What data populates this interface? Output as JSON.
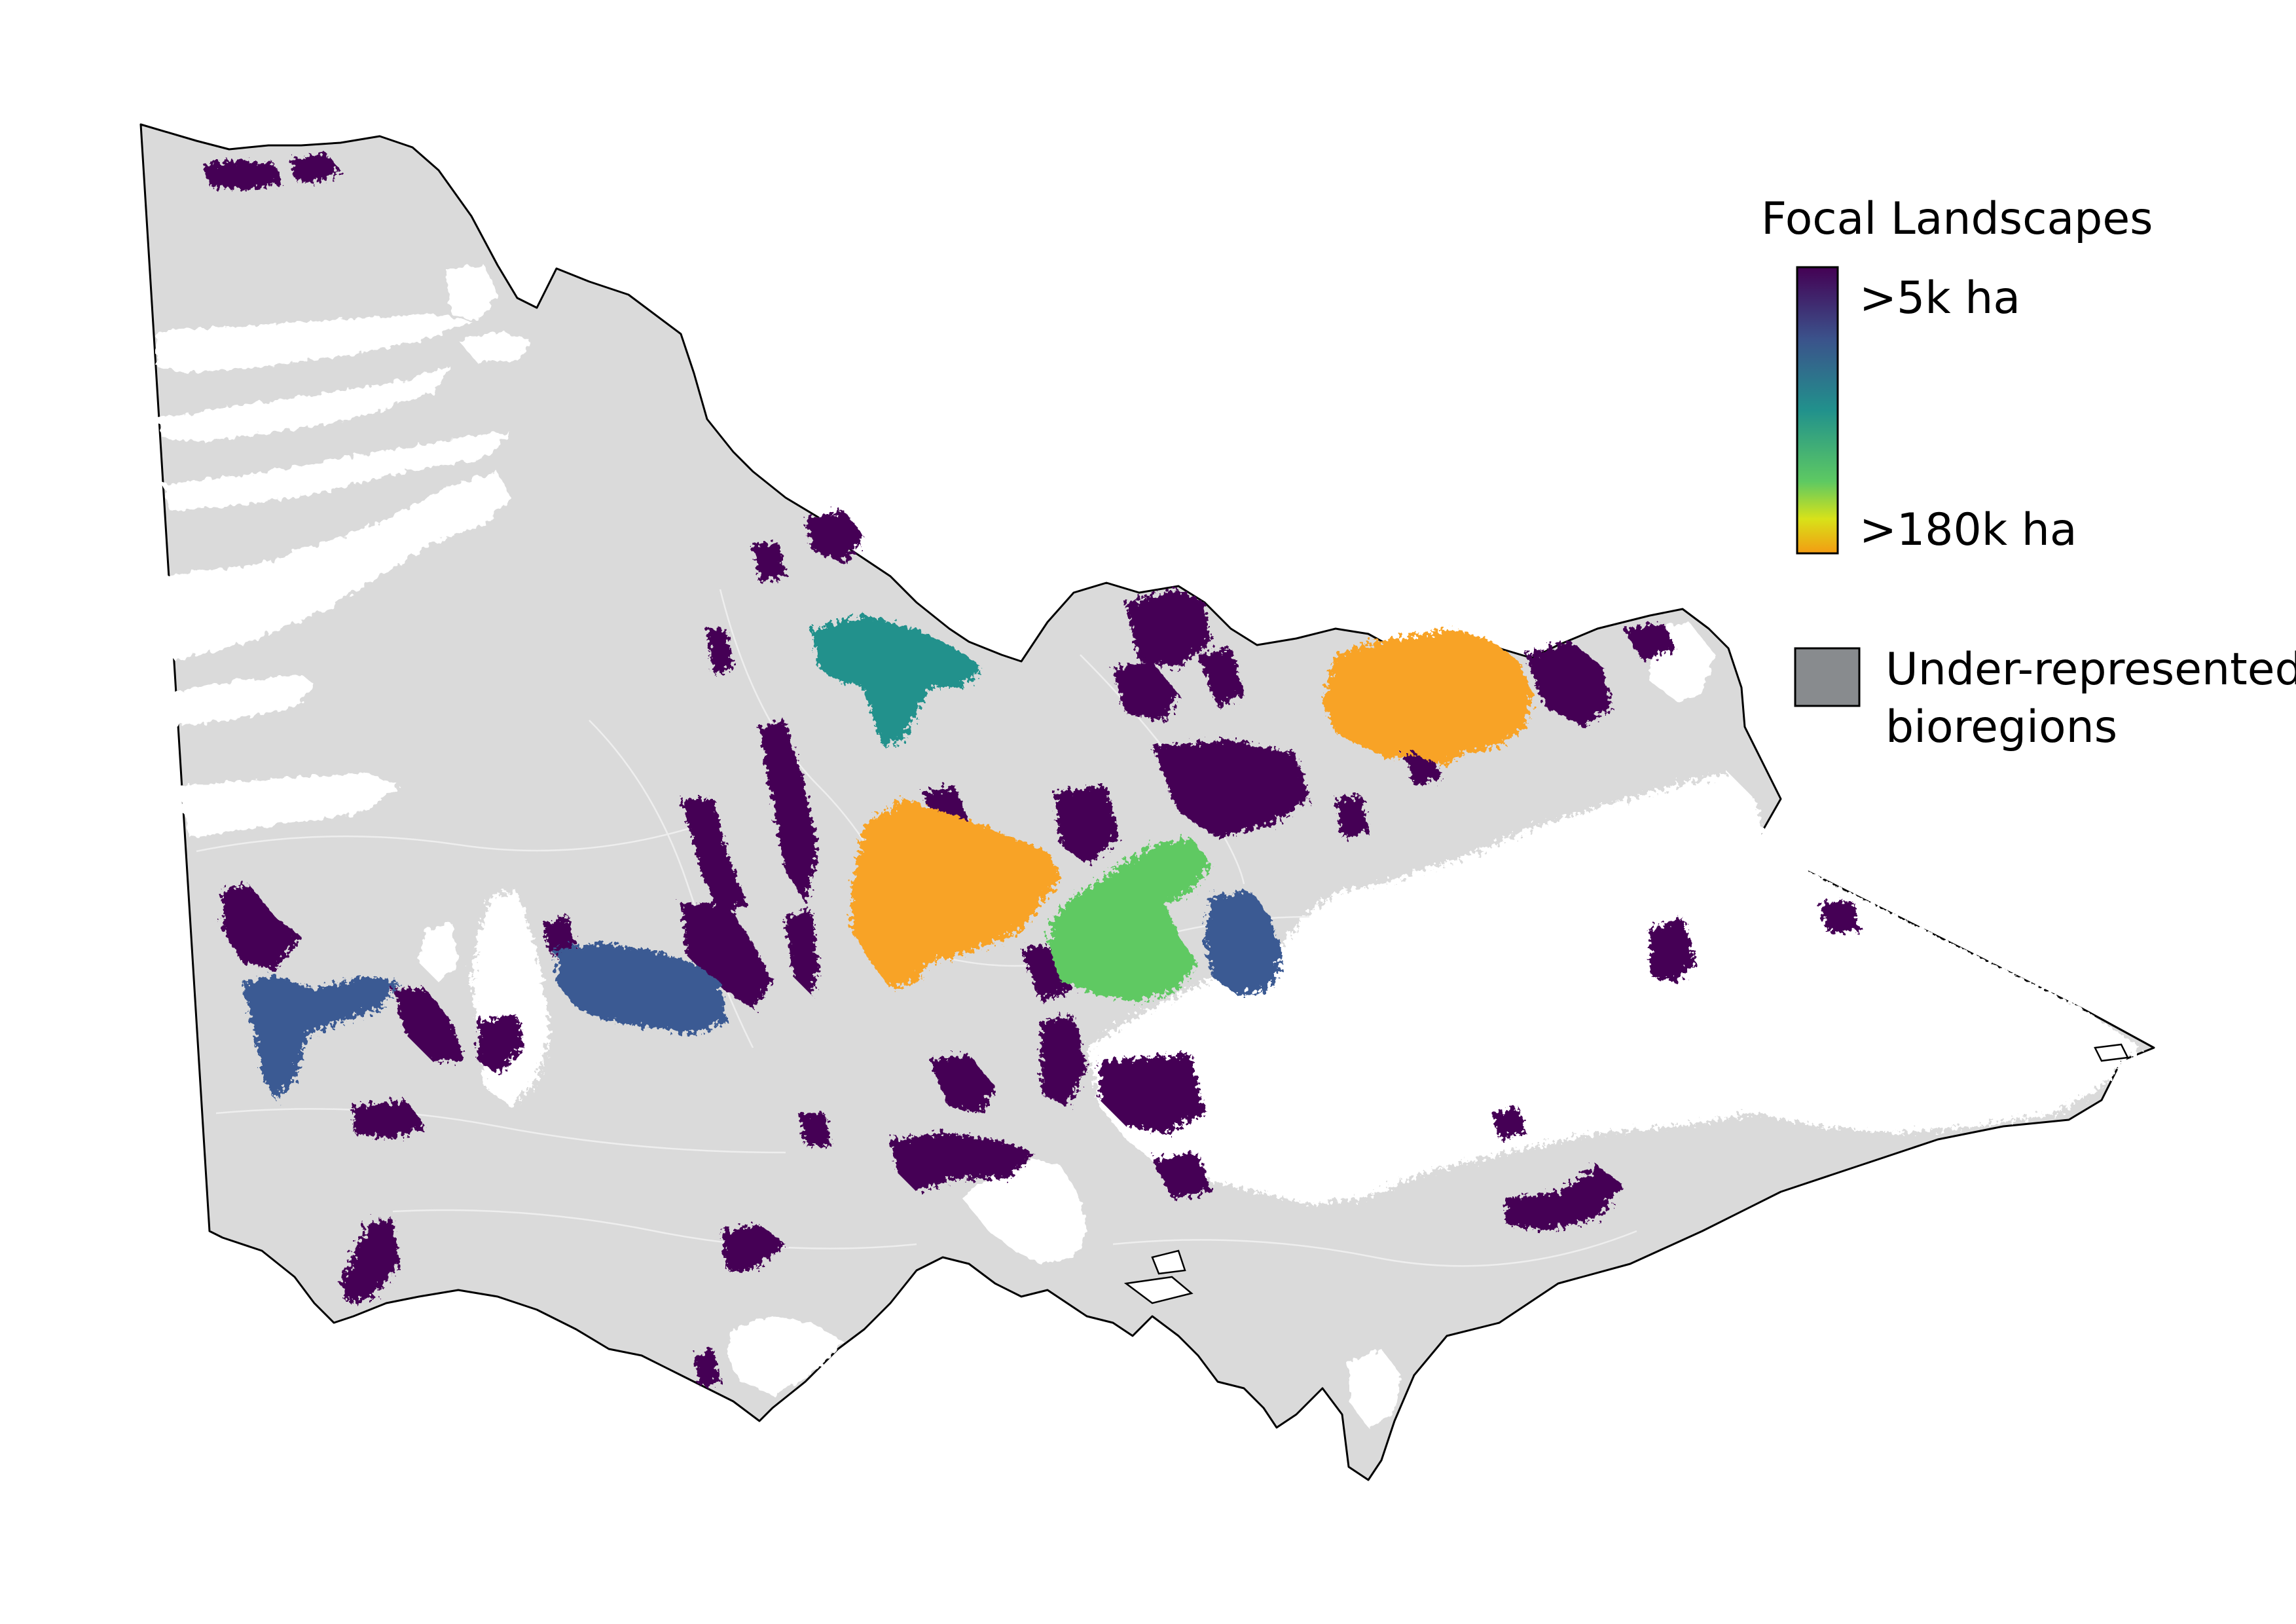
{
  "legend": {
    "title": "Focal Landscapes",
    "gradient_max_label": ">5k ha",
    "gradient_min_label": ">180k ha",
    "gradient_colors": [
      "#440154",
      "#3b528b",
      "#21918c",
      "#5ec962",
      "#fde725",
      "#f39c12"
    ],
    "under_represented_label_line1": "Under-represented",
    "under_represented_label_line2": "bioregions",
    "under_represented_color": "#888b8e"
  },
  "colors": {
    "state_fill": "#dadada",
    "state_outline": "#000000",
    "bioregion_lines": "#ececec",
    "gap_fill": "#ffffff",
    "landscape_small": "#440154",
    "landscape_medium_blue": "#3b5a93",
    "landscape_teal": "#21918c",
    "landscape_green": "#5ec962",
    "landscape_orange": "#f8a326"
  }
}
